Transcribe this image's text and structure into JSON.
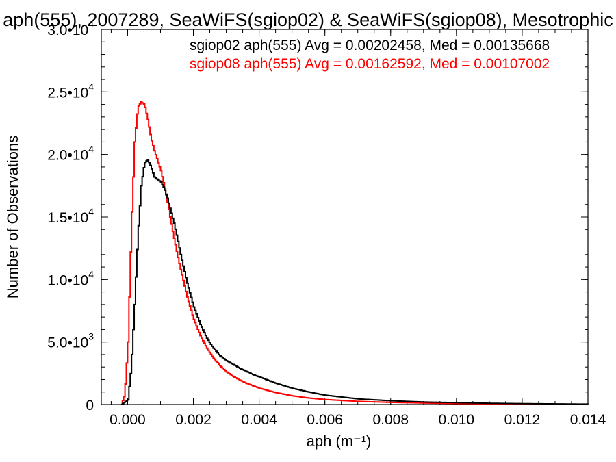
{
  "chart_data": {
    "type": "line",
    "title": "aph(555), 2007289, SeaWiFS(sgiop02) & SeaWiFS(sgiop08), Mesotrophic",
    "xlabel": "aph (m⁻¹)",
    "ylabel": "Number of Observations",
    "xlim": [
      -0.0008,
      0.014
    ],
    "ylim": [
      0,
      30000
    ],
    "x_ticks": [
      {
        "value": 0.0,
        "label": "0.000"
      },
      {
        "value": 0.002,
        "label": "0.002"
      },
      {
        "value": 0.004,
        "label": "0.004"
      },
      {
        "value": 0.006,
        "label": "0.006"
      },
      {
        "value": 0.008,
        "label": "0.008"
      },
      {
        "value": 0.01,
        "label": "0.010"
      },
      {
        "value": 0.012,
        "label": "0.012"
      },
      {
        "value": 0.014,
        "label": "0.014"
      }
    ],
    "y_ticks": [
      {
        "value": 0,
        "mantissa": "0",
        "exp": ""
      },
      {
        "value": 5000,
        "mantissa": "5.0•10",
        "exp": "3"
      },
      {
        "value": 10000,
        "mantissa": "1.0•10",
        "exp": "4"
      },
      {
        "value": 15000,
        "mantissa": "1.5•10",
        "exp": "4"
      },
      {
        "value": 20000,
        "mantissa": "2.0•10",
        "exp": "4"
      },
      {
        "value": 25000,
        "mantissa": "2.5•10",
        "exp": "4"
      },
      {
        "value": 30000,
        "mantissa": "3.0•10",
        "exp": "4"
      }
    ],
    "grid": false,
    "legend_placement": "top-right",
    "series": [
      {
        "name": "sgiop02 aph(555) Avg = 0.00202458, Med = 0.00135668",
        "color": "#000000",
        "x": [
          -0.0002,
          0.0,
          0.0001,
          0.0002,
          0.0003,
          0.0004,
          0.0005,
          0.0006,
          0.0007,
          0.0008,
          0.0009,
          0.001,
          0.0011,
          0.0012,
          0.0013,
          0.0014,
          0.0015,
          0.0016,
          0.0018,
          0.002,
          0.0022,
          0.0024,
          0.0026,
          0.0028,
          0.003,
          0.0032,
          0.0034,
          0.0036,
          0.0038,
          0.004,
          0.0045,
          0.005,
          0.0055,
          0.006,
          0.007,
          0.008,
          0.009,
          0.01,
          0.011,
          0.012,
          0.013,
          0.014
        ],
        "y": [
          0,
          400,
          3000,
          8000,
          13500,
          17500,
          19300,
          19600,
          19000,
          18200,
          18000,
          17800,
          17300,
          16500,
          15500,
          14500,
          13300,
          12000,
          9700,
          7800,
          6400,
          5300,
          4500,
          3900,
          3500,
          3200,
          2900,
          2650,
          2400,
          2200,
          1700,
          1300,
          1000,
          750,
          450,
          300,
          200,
          150,
          100,
          70,
          50,
          30
        ]
      },
      {
        "name": "sgiop08 aph(555) Avg = 0.00162592, Med = 0.00107002",
        "color": "#ff0000",
        "x": [
          -0.0002,
          -0.0001,
          0.0,
          0.0001,
          0.0002,
          0.0003,
          0.0004,
          0.0005,
          0.0006,
          0.0007,
          0.0008,
          0.0009,
          0.001,
          0.0011,
          0.0012,
          0.0013,
          0.0014,
          0.0015,
          0.0016,
          0.0018,
          0.002,
          0.0022,
          0.0024,
          0.0026,
          0.0028,
          0.003,
          0.0032,
          0.0034,
          0.0036,
          0.0038,
          0.004,
          0.0045,
          0.005,
          0.0055,
          0.006,
          0.007,
          0.008,
          0.009,
          0.01,
          0.011,
          0.012,
          0.013,
          0.014
        ],
        "y": [
          0,
          800,
          5000,
          14000,
          21000,
          23800,
          24200,
          24000,
          22800,
          21300,
          20300,
          19500,
          18700,
          17500,
          16200,
          14700,
          13300,
          12000,
          10800,
          8600,
          6800,
          5500,
          4500,
          3700,
          3100,
          2600,
          2250,
          1950,
          1700,
          1500,
          1300,
          950,
          700,
          520,
          400,
          250,
          170,
          120,
          80,
          60,
          40,
          30,
          20
        ]
      }
    ]
  }
}
